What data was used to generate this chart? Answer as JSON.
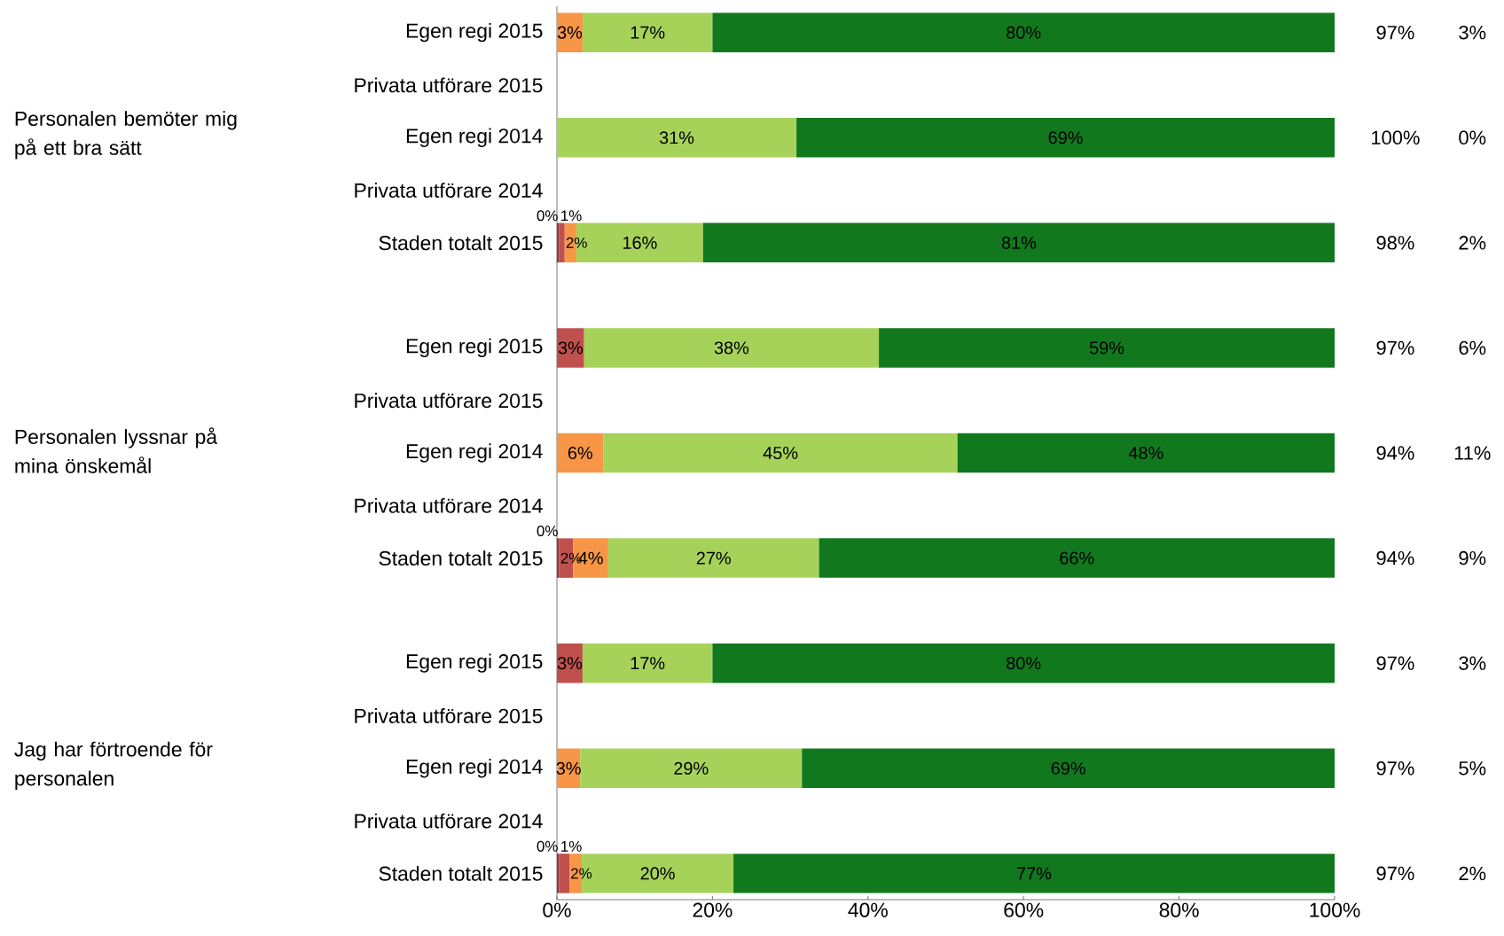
{
  "chart_data": {
    "type": "bar",
    "orientation": "horizontal",
    "stacked": true,
    "categories": [
      "Egen regi 2015",
      "Privata utförare 2015",
      "Egen regi 2014",
      "Privata utförare 2014",
      "Staden totalt 2015",
      null,
      "Egen regi 2015",
      "Privata utförare 2015",
      "Egen regi 2014",
      "Privata utförare 2014",
      "Staden totalt 2015",
      null,
      "Egen regi 2015",
      "Privata utförare 2015",
      "Egen regi 2014",
      "Privata utförare 2014",
      "Staden totalt 2015"
    ],
    "series": [
      {
        "color": "#953735",
        "values": [
          null,
          null,
          null,
          null,
          0.3,
          null,
          null,
          null,
          null,
          null,
          0.3,
          null,
          null,
          null,
          null,
          null,
          0.3
        ],
        "value_labels": [
          null,
          null,
          null,
          null,
          "0%",
          null,
          null,
          null,
          null,
          null,
          "0%",
          null,
          null,
          null,
          null,
          null,
          "0%"
        ]
      },
      {
        "color": "#c0504d",
        "values": [
          null,
          null,
          null,
          null,
          0.7,
          null,
          3.5,
          null,
          null,
          null,
          1.8,
          null,
          3.3,
          null,
          null,
          null,
          1.3
        ],
        "value_labels": [
          null,
          null,
          null,
          null,
          "1%",
          null,
          "3%",
          null,
          null,
          null,
          "2%",
          null,
          "3%",
          null,
          null,
          null,
          "1%"
        ]
      },
      {
        "color": "#f79646",
        "values": [
          3.3,
          null,
          null,
          null,
          1.5,
          null,
          null,
          null,
          6,
          null,
          4.5,
          null,
          null,
          null,
          3,
          null,
          1.6
        ],
        "value_labels": [
          "3%",
          null,
          null,
          null,
          "2%",
          null,
          null,
          null,
          "6%",
          null,
          "4%",
          null,
          null,
          null,
          "3%",
          null,
          "2%"
        ]
      },
      {
        "color": "#a6d25a",
        "values": [
          16.7,
          null,
          30.8,
          null,
          16.3,
          null,
          37.9,
          null,
          45.5,
          null,
          27.1,
          null,
          16.7,
          null,
          28.5,
          null,
          19.5
        ],
        "value_labels": [
          "17%",
          null,
          "31%",
          null,
          "16%",
          null,
          "38%",
          null,
          "45%",
          null,
          "27%",
          null,
          "17%",
          null,
          "29%",
          null,
          "20%"
        ]
      },
      {
        "color": "#11781e",
        "values": [
          80,
          null,
          69.2,
          null,
          81.2,
          null,
          58.6,
          null,
          48.5,
          null,
          66.3,
          null,
          80,
          null,
          68.5,
          null,
          77.3
        ],
        "value_labels": [
          "80%",
          null,
          "69%",
          null,
          "81%",
          null,
          "59%",
          null,
          "48%",
          null,
          "66%",
          null,
          "80%",
          null,
          "69%",
          null,
          "77%"
        ]
      }
    ],
    "xlim": [
      0,
      100
    ],
    "xticks": [
      {
        "value": 0,
        "label": "0%"
      },
      {
        "value": 20,
        "label": "20%"
      },
      {
        "value": 40,
        "label": "40%"
      },
      {
        "value": 60,
        "label": "60%"
      },
      {
        "value": 80,
        "label": "80%"
      },
      {
        "value": 100,
        "label": "100%"
      }
    ],
    "grid": false,
    "annotations": [
      "Personalen bemöter mig på ett bra sätt",
      "97%",
      "3%",
      "100%",
      "0%",
      "98%",
      "2%",
      "Personalen lyssnar på mina önskemål",
      "97%",
      "6%",
      "94%",
      "11%",
      "94%",
      "9%",
      "Jag har förtroende för personalen",
      "97%",
      "3%",
      "97%",
      "5%",
      "97%",
      "2%"
    ]
  }
}
